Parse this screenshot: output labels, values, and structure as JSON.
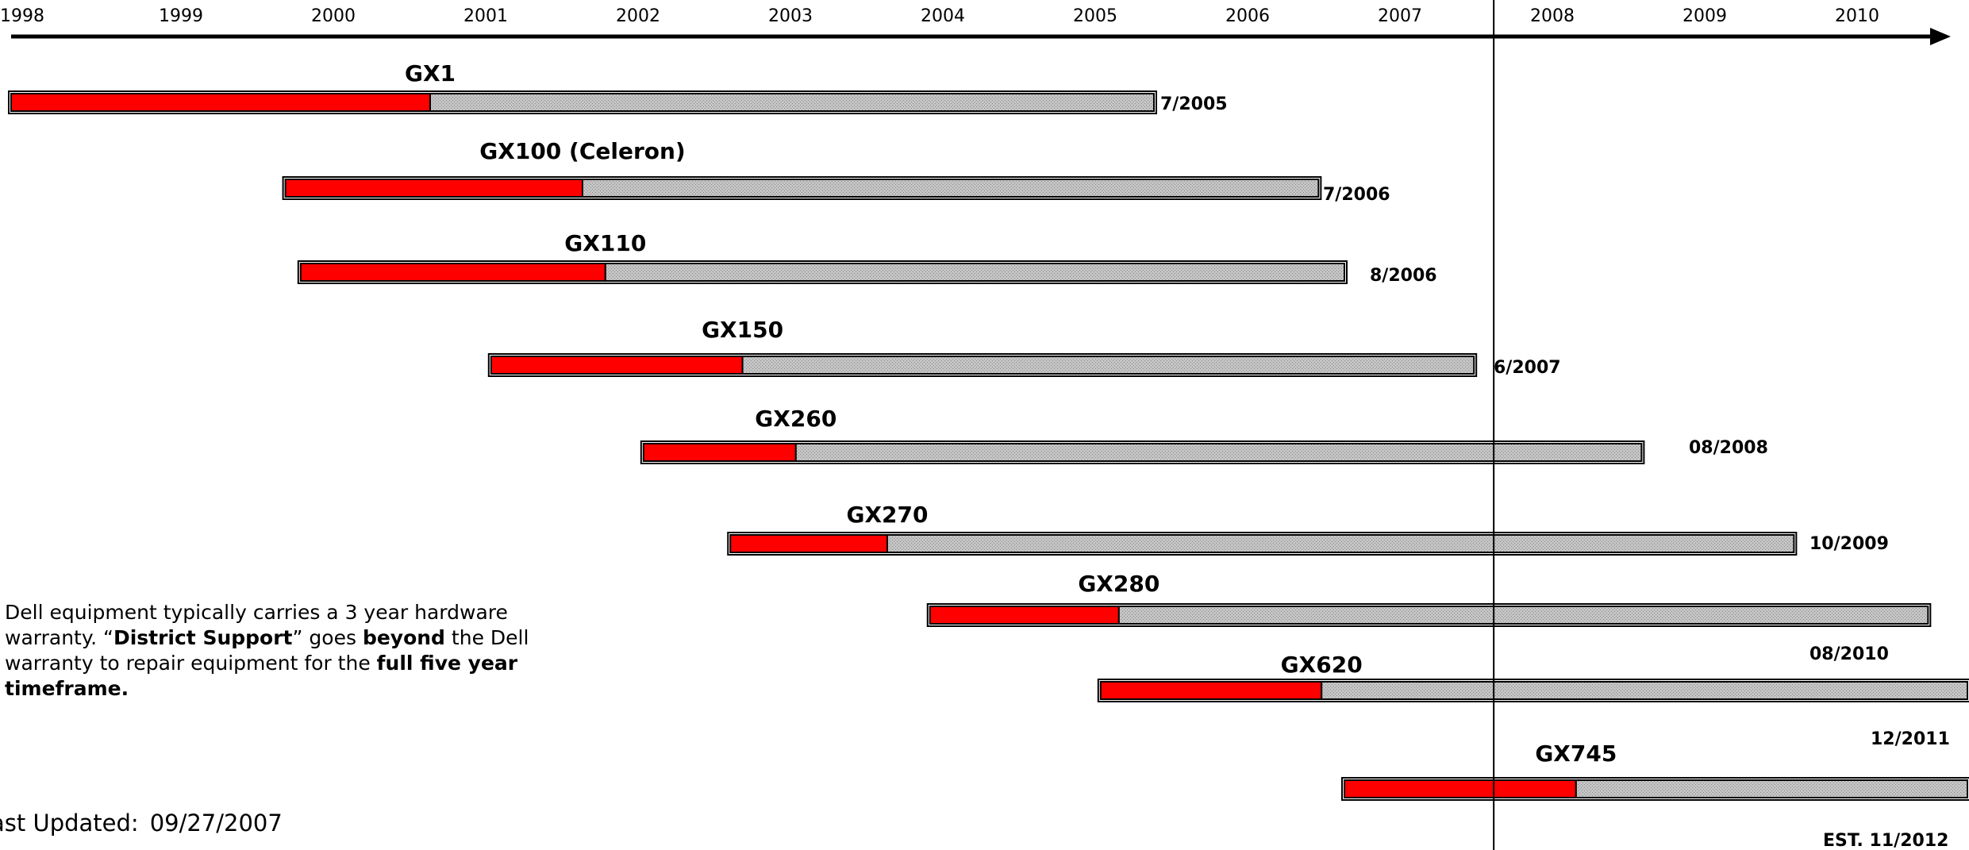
{
  "chart_data": {
    "type": "timeline",
    "title": "",
    "x_axis": {
      "ticks": [
        "1998",
        "1999",
        "2000",
        "2001",
        "2002",
        "2003",
        "2004",
        "2005",
        "2006",
        "2007",
        "2008",
        "2009",
        "2010"
      ],
      "range": [
        1998.0,
        2010.75
      ]
    },
    "today_marker": 2007.73,
    "colors": {
      "warranty": "#ff0000",
      "district_support": "#bdbdbd",
      "outline": "#000000"
    },
    "series": [
      {
        "name": "GX1",
        "start": 1998.0,
        "warranty_end": 2000.75,
        "end": 2005.5,
        "end_label": "7/2005"
      },
      {
        "name": "GX100 (Celeron)",
        "start": 1999.8,
        "warranty_end": 2001.75,
        "end": 2006.58,
        "end_label": "7/2006"
      },
      {
        "name": "GX110",
        "start": 1999.9,
        "warranty_end": 2001.9,
        "end": 2006.75,
        "end_label": "8/2006"
      },
      {
        "name": "GX150",
        "start": 2001.15,
        "warranty_end": 2002.8,
        "end": 2007.6,
        "end_label": "6/2007"
      },
      {
        "name": "GX260",
        "start": 2002.15,
        "warranty_end": 2003.15,
        "end": 2008.7,
        "end_label": "08/2008"
      },
      {
        "name": "GX270",
        "start": 2002.72,
        "warranty_end": 2003.75,
        "end": 2009.7,
        "end_label": "10/2009"
      },
      {
        "name": "GX280",
        "start": 2004.03,
        "warranty_end": 2005.27,
        "end": 2010.58,
        "end_label": "08/2010"
      },
      {
        "name": "GX620",
        "start": 2005.15,
        "warranty_end": 2006.6,
        "end": 2010.9,
        "end_label": "12/2011"
      },
      {
        "name": "GX745",
        "start": 2006.75,
        "warranty_end": 2008.27,
        "end": 2010.9,
        "end_label": "EST. 11/2012"
      }
    ]
  },
  "note": {
    "part1": "Dell equipment typically carries a 3 year hardware warranty.  “",
    "part2": "District Support",
    "part3": "” goes ",
    "part4": "beyond",
    "part5": " the Dell warranty to repair equipment for the ",
    "part6": "full five year timeframe."
  },
  "last_updated": {
    "label": "ast Updated:",
    "date": "09/27/2007"
  }
}
